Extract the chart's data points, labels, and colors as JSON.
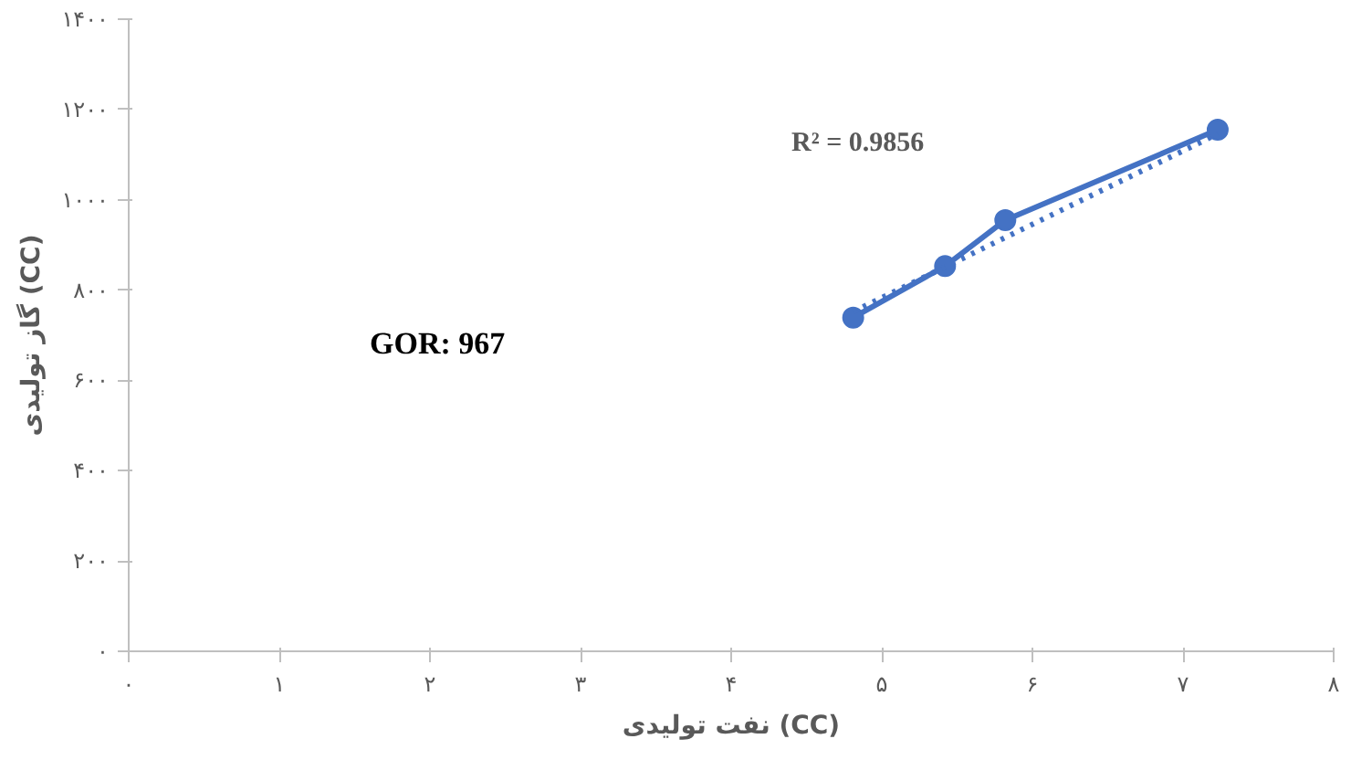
{
  "chart_data": {
    "type": "line",
    "xlabel": "نفت تولیدی (CC)",
    "ylabel": "گاز تولیدی (CC)",
    "xlim": [
      0,
      8
    ],
    "ylim": [
      0,
      1400
    ],
    "xticks": [
      {
        "value": 0,
        "label": "۰"
      },
      {
        "value": 1,
        "label": "۱"
      },
      {
        "value": 2,
        "label": "۲"
      },
      {
        "value": 3,
        "label": "۳"
      },
      {
        "value": 4,
        "label": "۴"
      },
      {
        "value": 5,
        "label": "۵"
      },
      {
        "value": 6,
        "label": "۶"
      },
      {
        "value": 7,
        "label": "۷"
      },
      {
        "value": 8,
        "label": "۸"
      }
    ],
    "yticks": [
      {
        "value": 0,
        "label": "۰"
      },
      {
        "value": 200,
        "label": "۲۰۰"
      },
      {
        "value": 400,
        "label": "۴۰۰"
      },
      {
        "value": 600,
        "label": "۶۰۰"
      },
      {
        "value": 800,
        "label": "۸۰۰"
      },
      {
        "value": 1000,
        "label": "۱۰۰۰"
      },
      {
        "value": 1200,
        "label": "۱۲۰۰"
      },
      {
        "value": 1400,
        "label": "۱۴۰۰"
      }
    ],
    "grid": false,
    "series": [
      {
        "color": "#4472c4",
        "x": [
          4.81,
          5.42,
          5.82,
          7.23
        ],
        "values": [
          739,
          853,
          955,
          1155
        ],
        "marker": "circle",
        "line_style": "solid"
      },
      {
        "color": "#4472c4",
        "x": [
          4.81,
          7.23
        ],
        "values": [
          752,
          1146
        ],
        "marker": "none",
        "line_style": "dotted"
      }
    ],
    "annotations": [
      "R² = 0.9856",
      "GOR: 967"
    ]
  }
}
